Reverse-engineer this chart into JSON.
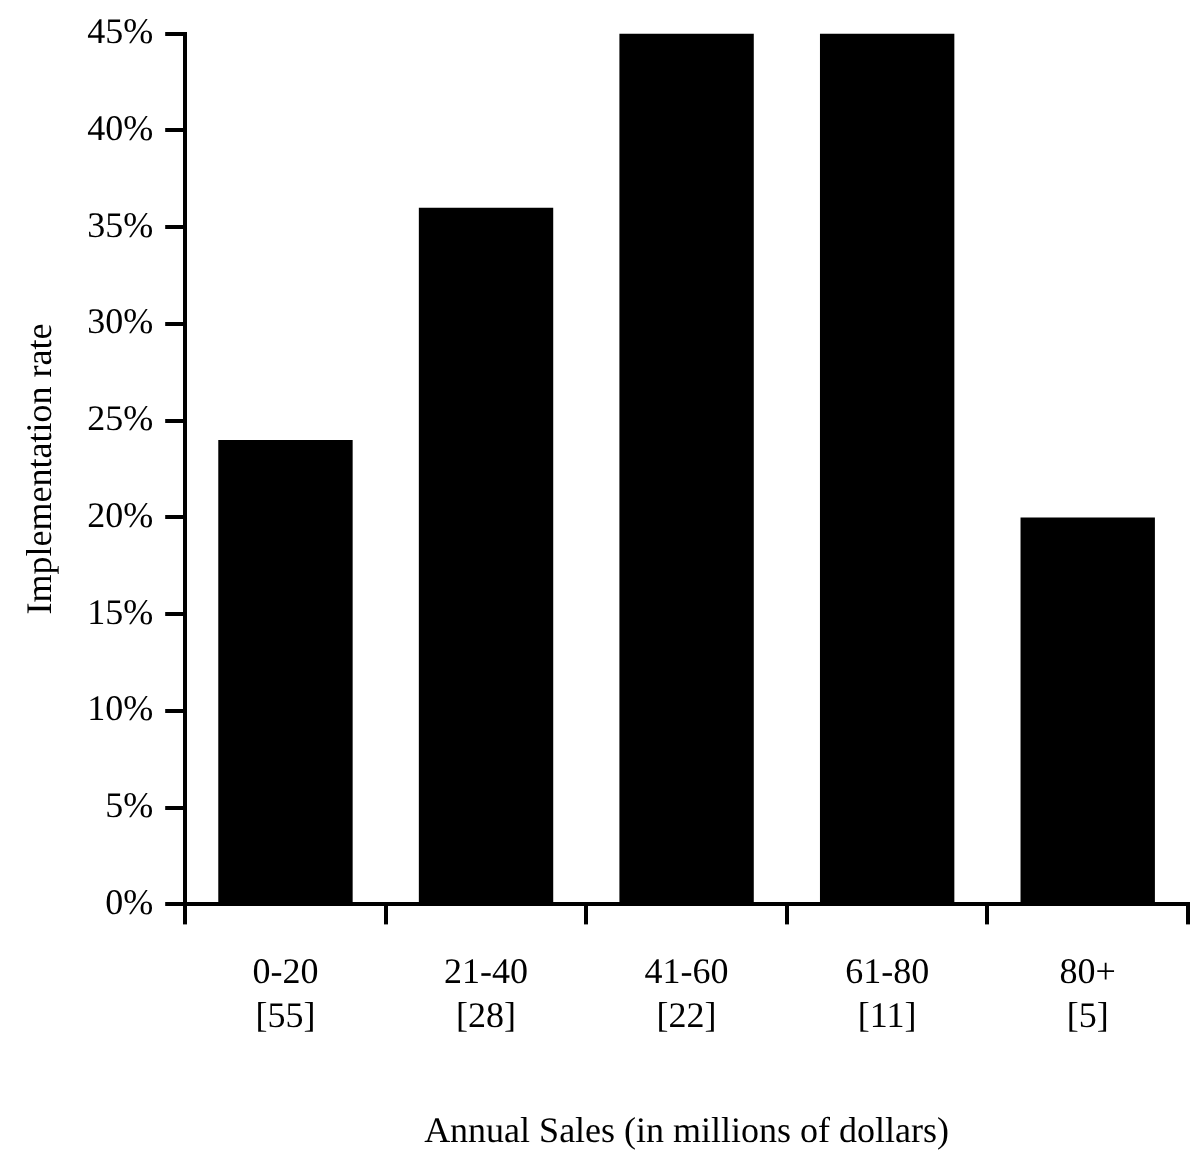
{
  "chart_data": {
    "type": "bar",
    "xlabel": "Annual Sales (in millions of dollars)",
    "ylabel": "Implementation rate",
    "categories": [
      "0-20\n[55]",
      "21-40\n[28]",
      "41-60\n[22]",
      "61-80\n[11]",
      "80+\n[5]"
    ],
    "values": [
      24,
      36,
      45,
      45,
      20
    ],
    "color": "#000000",
    "ylim": [
      0,
      45
    ],
    "yticks": [
      {
        "value": 0,
        "label": "0%"
      },
      {
        "value": 5,
        "label": "5%"
      },
      {
        "value": 10,
        "label": "10%"
      },
      {
        "value": 15,
        "label": "15%"
      },
      {
        "value": 20,
        "label": "20%"
      },
      {
        "value": 25,
        "label": "25%"
      },
      {
        "value": 30,
        "label": "30%"
      },
      {
        "value": 35,
        "label": "35%"
      },
      {
        "value": 40,
        "label": "40%"
      },
      {
        "value": 45,
        "label": "45%"
      }
    ],
    "grid": false,
    "legend": false
  }
}
